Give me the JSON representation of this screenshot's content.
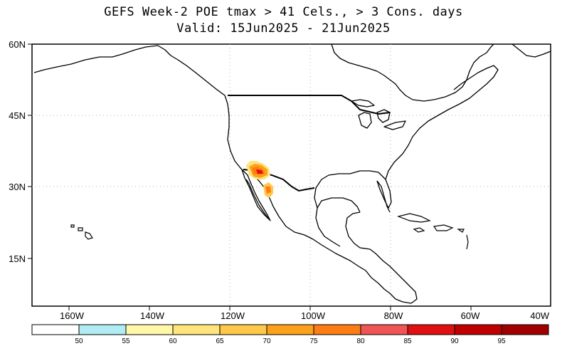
{
  "title": {
    "line1": "GEFS Week-2 POE tmax > 41 Cels., > 3 Cons. days",
    "line2": "Valid: 15Jun2025 - 21Jun2025"
  },
  "map": {
    "lat_labels": [
      "60N",
      "45N",
      "30N",
      "15N"
    ],
    "lon_labels": [
      "160W",
      "140W",
      "120W",
      "100W",
      "80W",
      "60W",
      "40W"
    ],
    "region": "North America",
    "hotspot_region": "Southwest US / NW Mexico (Arizona, Sonora)"
  },
  "legend": {
    "breaks": [
      "50",
      "55",
      "60",
      "65",
      "70",
      "75",
      "80",
      "85",
      "90",
      "95"
    ],
    "colors": [
      "#ffffff",
      "#b0ecf4",
      "#fff8a8",
      "#fee47a",
      "#fec84a",
      "#fea11a",
      "#fe7c14",
      "#f05454",
      "#e01010",
      "#c00000",
      "#a00000"
    ]
  },
  "colors": {
    "coast": "#000000",
    "grid": "#b0b0b0"
  }
}
